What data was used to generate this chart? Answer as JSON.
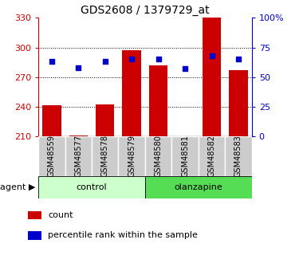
{
  "title": "GDS2608 / 1379729_at",
  "samples": [
    "GSM48559",
    "GSM48577",
    "GSM48578",
    "GSM48579",
    "GSM48580",
    "GSM48581",
    "GSM48582",
    "GSM48583"
  ],
  "counts": [
    241,
    211,
    242,
    297,
    282,
    210,
    330,
    277
  ],
  "percentiles": [
    63,
    58,
    63,
    65,
    65,
    57,
    68,
    65
  ],
  "ymin": 210,
  "ymax": 330,
  "yticks_left": [
    210,
    240,
    270,
    300,
    330
  ],
  "right_yticks": [
    0,
    25,
    50,
    75,
    100
  ],
  "groups": [
    {
      "label": "control",
      "start": 0,
      "end": 4,
      "color": "#ccffcc"
    },
    {
      "label": "olanzapine",
      "start": 4,
      "end": 8,
      "color": "#55dd55"
    }
  ],
  "bar_color": "#cc0000",
  "dot_color": "#0000cc",
  "bar_width": 0.7,
  "xlabel_color": "#cc0000",
  "ylabel_right_color": "#0000cc",
  "agent_label": "agent ▶",
  "legend_count": "count",
  "legend_pct": "percentile rank within the sample",
  "sample_box_color": "#cccccc",
  "grid_dotted": [
    240,
    270,
    300
  ]
}
